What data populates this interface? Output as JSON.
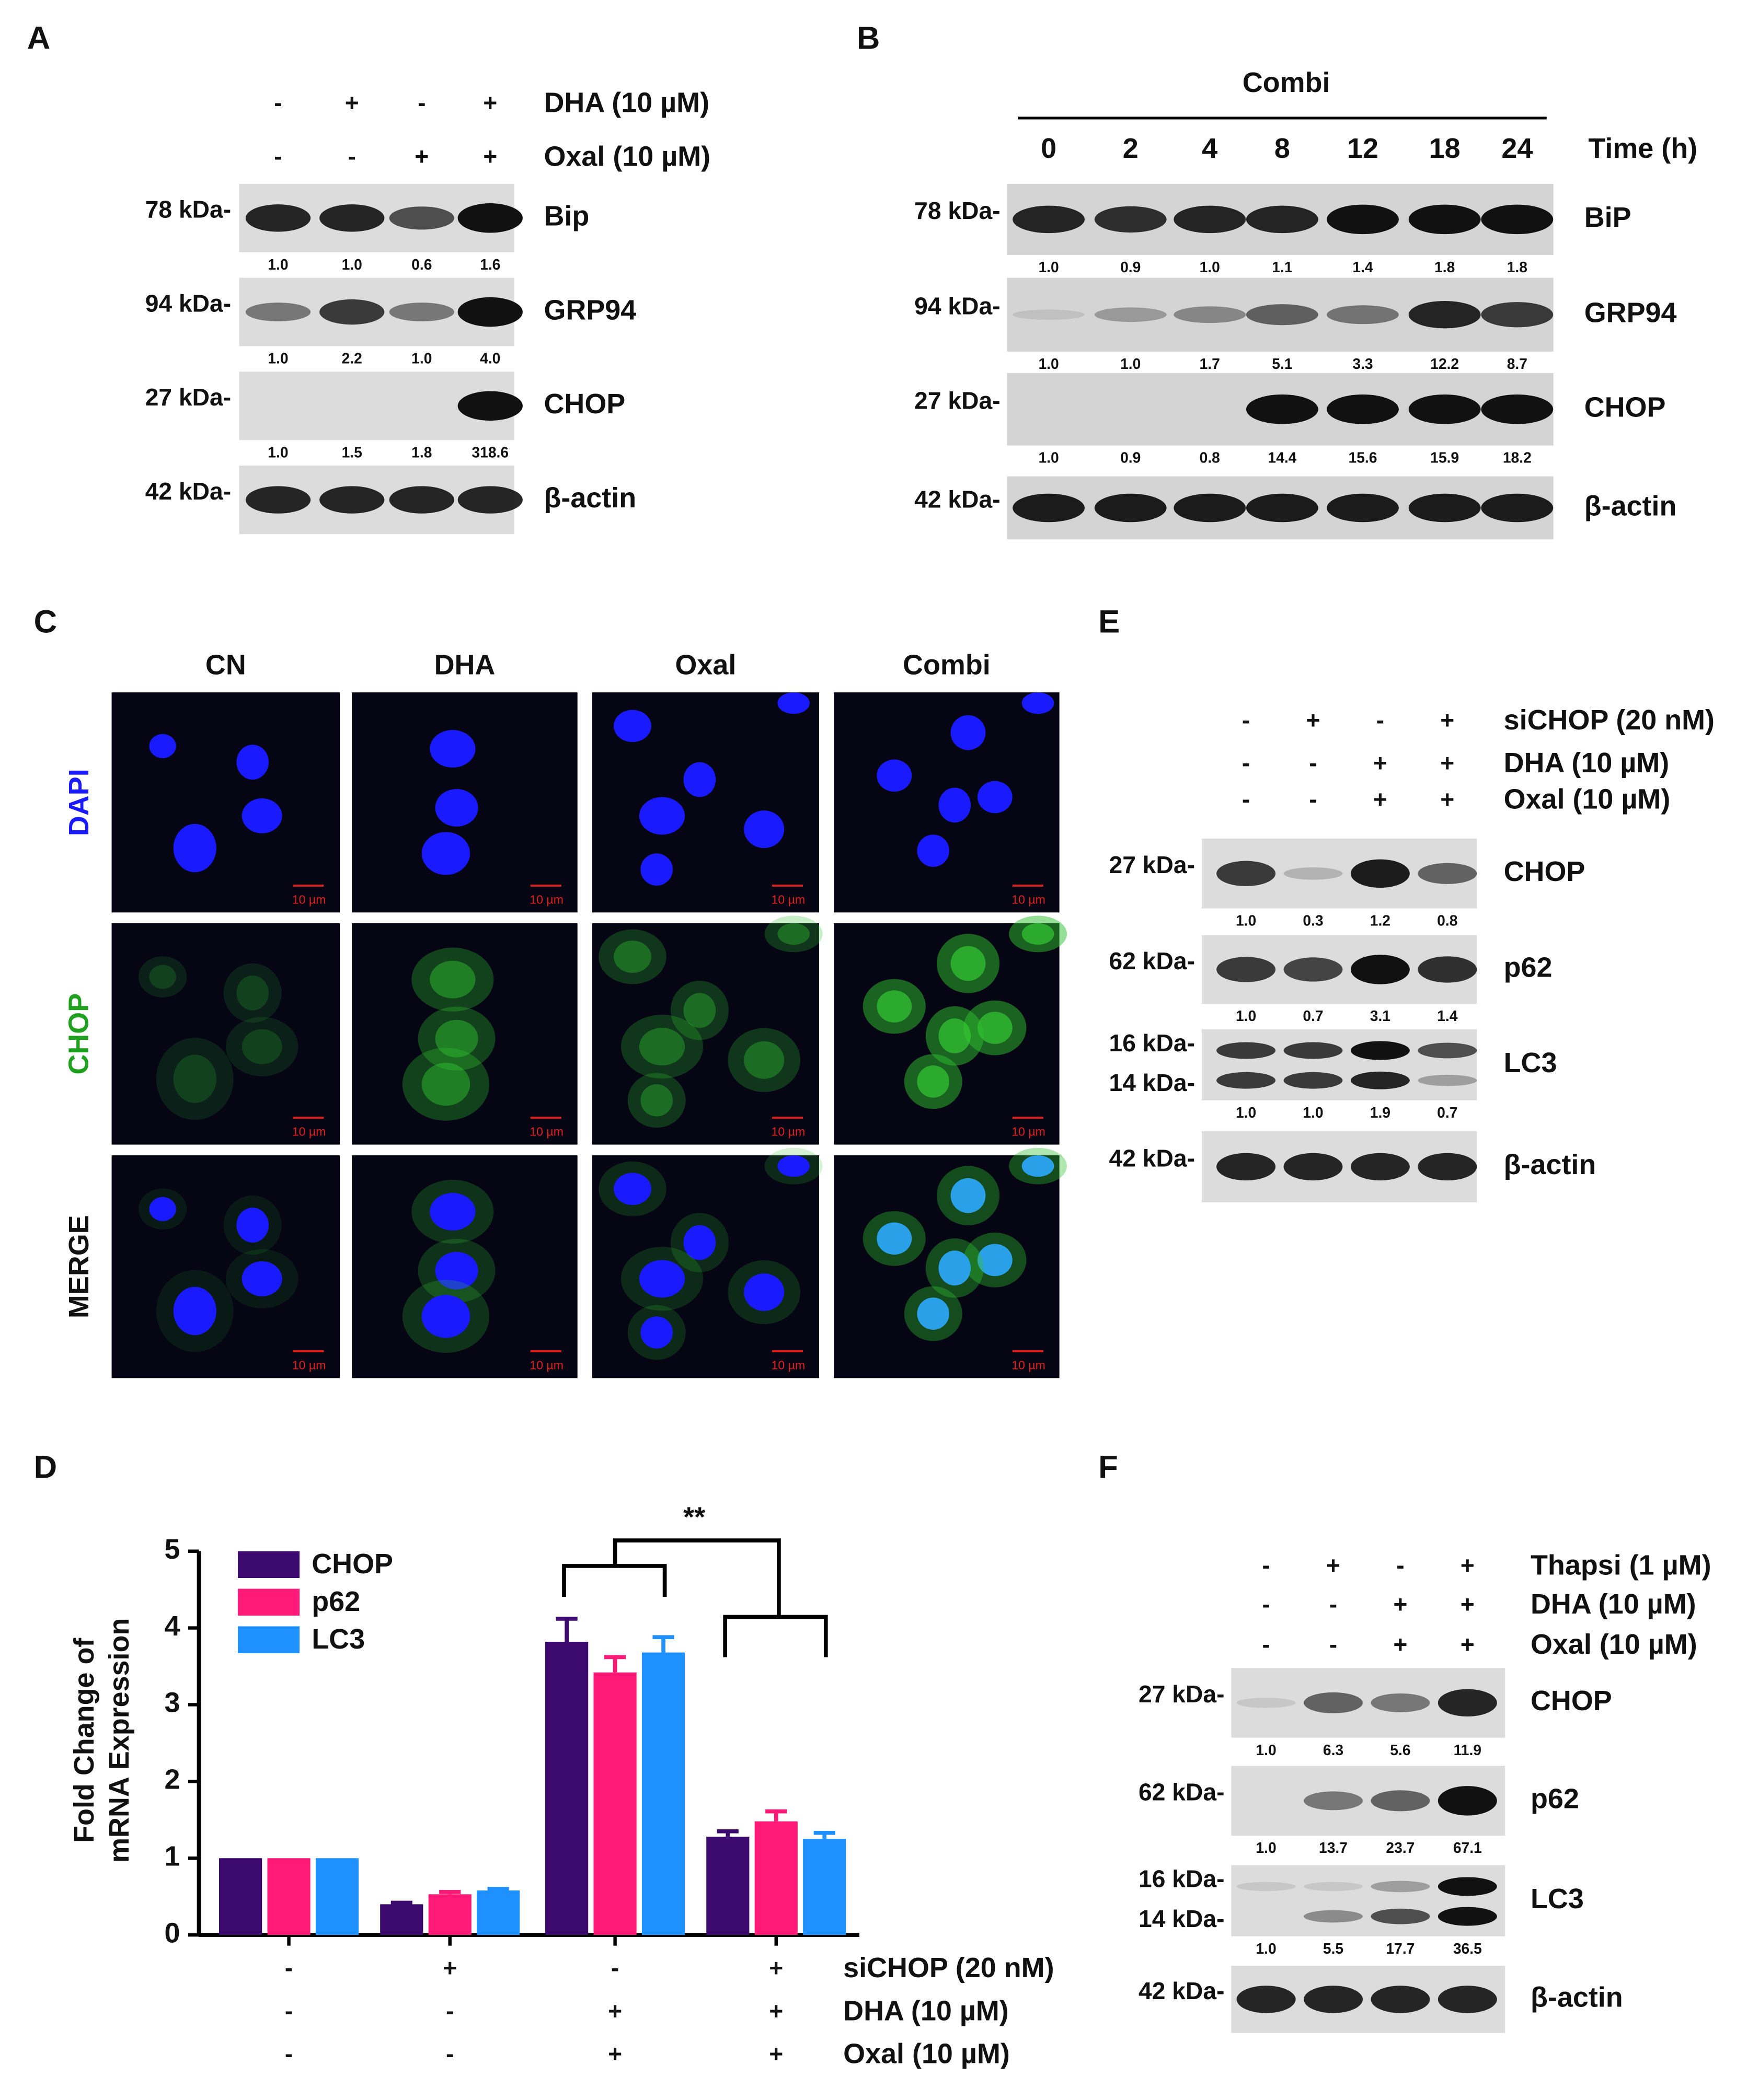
{
  "figure": {
    "A": {
      "letter": "A",
      "treatments": [
        {
          "signs": [
            "-",
            "+",
            "-",
            "+"
          ],
          "label": "DHA  (10 µM)"
        },
        {
          "signs": [
            "-",
            "-",
            "+",
            "+"
          ],
          "label": "Oxal (10 µM)"
        }
      ],
      "blots": [
        {
          "markers": [
            "78 kDa-"
          ],
          "protein": "Bip",
          "quant": [
            "1.0",
            "1.0",
            "0.6",
            "1.6"
          ]
        },
        {
          "markers": [
            "94 kDa-"
          ],
          "protein": "GRP94",
          "quant": [
            "1.0",
            "2.2",
            "1.0",
            "4.0"
          ]
        },
        {
          "markers": [
            "27 kDa-"
          ],
          "protein": "CHOP",
          "quant": [
            "1.0",
            "1.5",
            "1.8",
            "318.6"
          ]
        },
        {
          "markers": [
            "42 kDa-"
          ],
          "protein": "β-actin"
        }
      ]
    },
    "B": {
      "letter": "B",
      "group": "Combi",
      "time_points": [
        "0",
        "2",
        "4",
        "8",
        "12",
        "18",
        "24"
      ],
      "time_label": "Time (h)",
      "blots": [
        {
          "markers": [
            "78 kDa-"
          ],
          "protein": "BiP",
          "quant": [
            "1.0",
            "0.9",
            "1.0",
            "1.1",
            "1.4",
            "1.8",
            "1.8"
          ]
        },
        {
          "markers": [
            "94 kDa-"
          ],
          "protein": "GRP94",
          "quant": [
            "1.0",
            "1.0",
            "1.7",
            "5.1",
            "3.3",
            "12.2",
            "8.7"
          ]
        },
        {
          "markers": [
            "27 kDa-"
          ],
          "protein": "CHOP",
          "quant": [
            "1.0",
            "0.9",
            "0.8",
            "14.4",
            "15.6",
            "15.9",
            "18.2"
          ]
        },
        {
          "markers": [
            "42 kDa-"
          ],
          "protein": "β-actin"
        }
      ]
    },
    "C": {
      "letter": "C",
      "columns": [
        "CN",
        "DHA",
        "Oxal",
        "Combi"
      ],
      "rows": [
        "DAPI",
        "CHOP",
        "MERGE"
      ],
      "scale_bar": "10 µm"
    },
    "E": {
      "letter": "E",
      "treatments": [
        {
          "signs": [
            "-",
            "+",
            "-",
            "+"
          ],
          "label": "siCHOP  (20 nM)"
        },
        {
          "signs": [
            "-",
            "-",
            "+",
            "+"
          ],
          "label": "DHA (10 µM)"
        },
        {
          "signs": [
            "-",
            "-",
            "+",
            "+"
          ],
          "label": "Oxal (10 µM)"
        }
      ],
      "blots": [
        {
          "markers": [
            "27 kDa-"
          ],
          "protein": "CHOP",
          "quant": [
            "1.0",
            "0.3",
            "1.2",
            "0.8"
          ]
        },
        {
          "markers": [
            "62 kDa-"
          ],
          "protein": "p62",
          "quant": [
            "1.0",
            "0.7",
            "3.1",
            "1.4"
          ]
        },
        {
          "markers": [
            "16 kDa-",
            "14 kDa-"
          ],
          "protein": "LC3",
          "quant": [
            "1.0",
            "1.0",
            "1.9",
            "0.7"
          ]
        },
        {
          "markers": [
            "42 kDa-"
          ],
          "protein": "β-actin"
        }
      ]
    },
    "F": {
      "letter": "F",
      "treatments": [
        {
          "signs": [
            "-",
            "+",
            "-",
            "+"
          ],
          "label": "Thapsi (1 µM)"
        },
        {
          "signs": [
            "-",
            "-",
            "+",
            "+"
          ],
          "label": "DHA (10 µM)"
        },
        {
          "signs": [
            "-",
            "-",
            "+",
            "+"
          ],
          "label": "Oxal (10 µM)"
        }
      ],
      "blots": [
        {
          "markers": [
            "27 kDa-"
          ],
          "protein": "CHOP",
          "quant": [
            "1.0",
            "6.3",
            "5.6",
            "11.9"
          ]
        },
        {
          "markers": [
            "62 kDa-"
          ],
          "protein": "p62",
          "quant": [
            "1.0",
            "13.7",
            "23.7",
            "67.1"
          ]
        },
        {
          "markers": [
            "16 kDa-",
            "14 kDa-"
          ],
          "protein": "LC3",
          "quant": [
            "1.0",
            "5.5",
            "17.7",
            "36.5"
          ]
        },
        {
          "markers": [
            "42 kDa-"
          ],
          "protein": "β-actin"
        }
      ]
    }
  },
  "chart_data": {
    "type": "bar",
    "letter": "D",
    "ylabel": [
      "Fold Change of",
      "mRNA Expression"
    ],
    "ylim": [
      0,
      5
    ],
    "yticks": [
      0,
      1,
      2,
      3,
      4,
      5
    ],
    "conditions": [
      {
        "signs": [
          "-",
          "+",
          "-",
          "+"
        ],
        "label": "siCHOP  (20 nM)"
      },
      {
        "signs": [
          "-",
          "-",
          "+",
          "+"
        ],
        "label": "DHA (10 µM)"
      },
      {
        "signs": [
          "-",
          "-",
          "+",
          "+"
        ],
        "label": "Oxal (10 µM)"
      }
    ],
    "series": [
      {
        "name": "CHOP",
        "color": "#3c0a6e",
        "values": [
          1.0,
          0.4,
          3.82,
          1.28
        ],
        "errors": [
          0,
          0.02,
          0.3,
          0.07
        ]
      },
      {
        "name": "p62",
        "color": "#ff1a78",
        "values": [
          1.0,
          0.53,
          3.42,
          1.48
        ],
        "errors": [
          0,
          0.03,
          0.2,
          0.13
        ]
      },
      {
        "name": "LC3",
        "color": "#1e90ff",
        "values": [
          1.0,
          0.58,
          3.68,
          1.25
        ],
        "errors": [
          0,
          0.02,
          0.2,
          0.08
        ]
      }
    ],
    "annotation": "**"
  }
}
